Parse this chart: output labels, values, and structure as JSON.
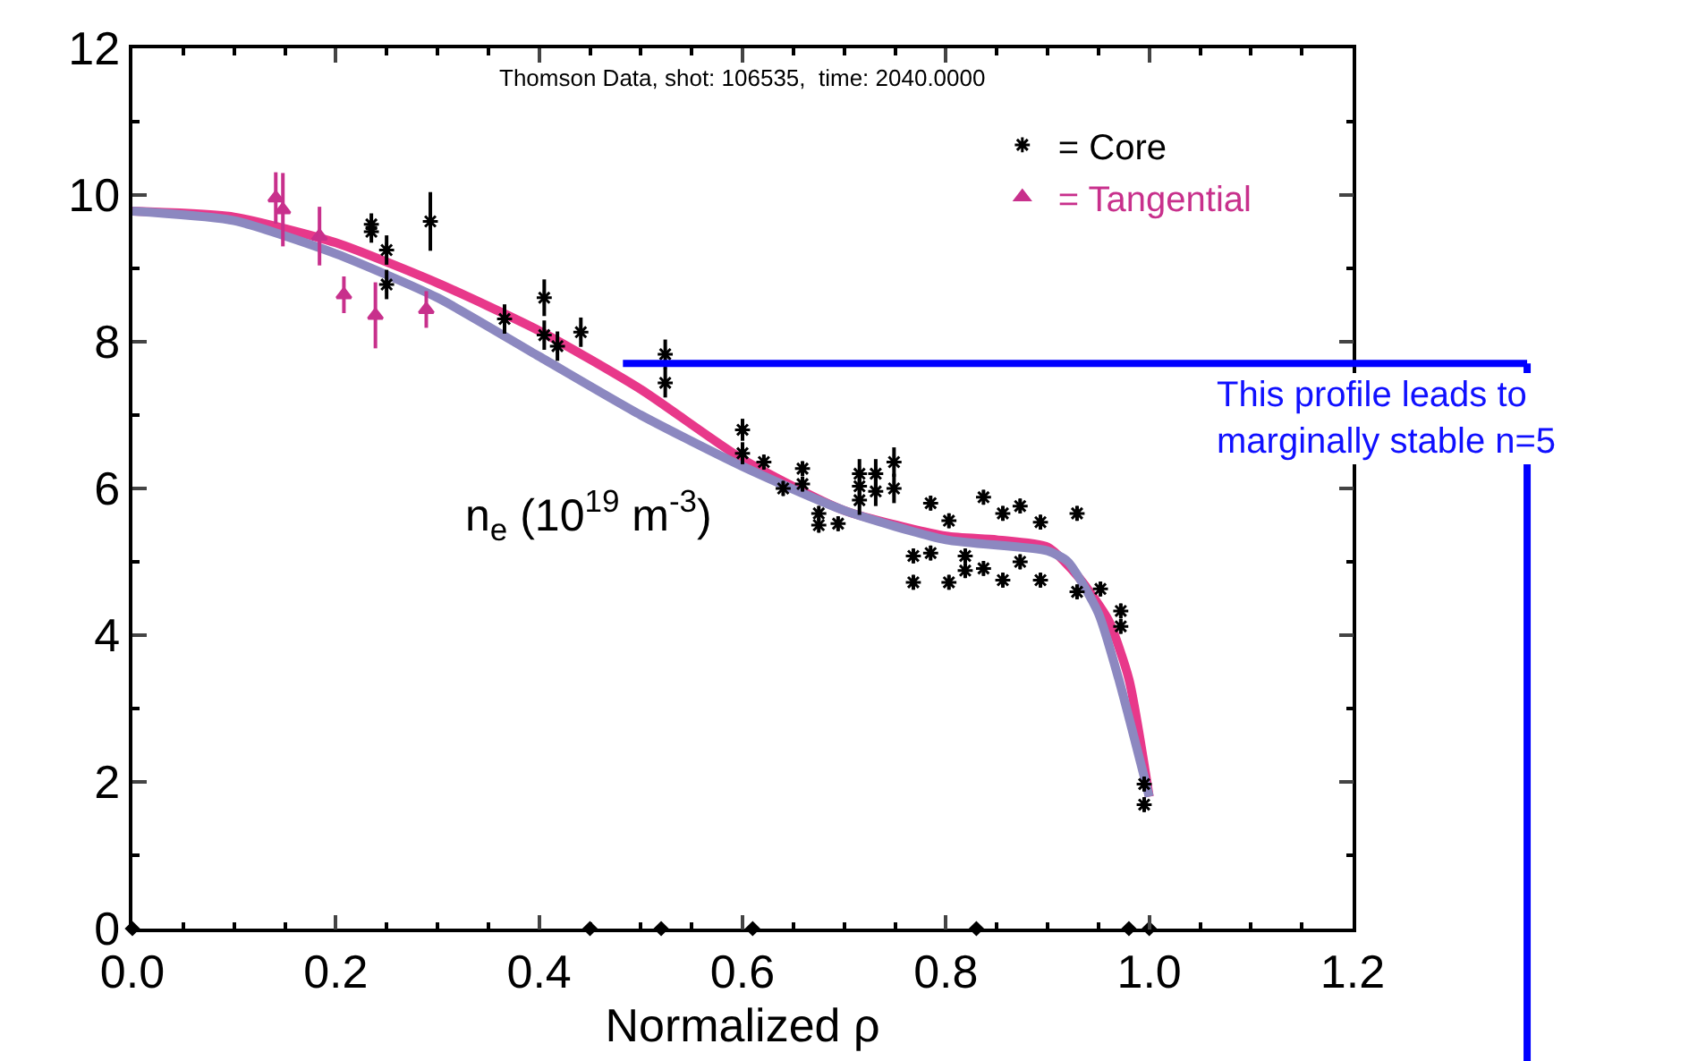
{
  "chart_data": {
    "type": "scatter",
    "title": "Thomson Data, shot: 106535,  time: 2040.0000",
    "xlabel": "Normalized ρ",
    "ylabel": "n$_{e}$ (10$^{19}$ m$^{-3}$)",
    "xlim": [
      0,
      1.2
    ],
    "xticks": [
      {
        "value": 0,
        "label": "0.0"
      },
      {
        "value": 0.2,
        "label": "0.2"
      },
      {
        "value": 0.4,
        "label": "0.4"
      },
      {
        "value": 0.6,
        "label": "0.6"
      },
      {
        "value": 0.8,
        "label": "0.8"
      },
      {
        "value": 1.0,
        "label": "1.0"
      },
      {
        "value": 1.2,
        "label": "1.2"
      }
    ],
    "ylim": [
      0,
      12
    ],
    "yticks": [
      0,
      2,
      4,
      6,
      8,
      10,
      12
    ],
    "legend": "top right",
    "annotations": [
      "This profile leads to marginally stable n=5"
    ],
    "series": [
      {
        "name": "= Core",
        "marker": "cross",
        "color": "#000000",
        "x": [
          0.235,
          0.235,
          0.25,
          0.25,
          0.293,
          0.366,
          0.405,
          0.405,
          0.418,
          0.441,
          0.524,
          0.524,
          0.6,
          0.6,
          0.621,
          0.64,
          0.659,
          0.659,
          0.675,
          0.675,
          0.694,
          0.715,
          0.715,
          0.715,
          0.731,
          0.731,
          0.749,
          0.749,
          0.768,
          0.768,
          0.785,
          0.785,
          0.803,
          0.803,
          0.819,
          0.819,
          0.837,
          0.837,
          0.856,
          0.856,
          0.873,
          0.873,
          0.893,
          0.893,
          0.929,
          0.929,
          0.952,
          0.972,
          0.972,
          0.995,
          0.995
        ],
        "values": [
          9.6,
          9.5,
          9.25,
          8.78,
          9.64,
          8.31,
          8.6,
          8.09,
          7.94,
          8.13,
          7.83,
          7.44,
          6.8,
          6.48,
          6.36,
          6.0,
          6.27,
          6.06,
          5.66,
          5.5,
          5.52,
          6.2,
          6.03,
          5.84,
          6.2,
          5.96,
          6.36,
          6.0,
          5.08,
          4.72,
          5.8,
          5.12,
          5.56,
          4.72,
          5.08,
          4.88,
          5.88,
          4.91,
          5.66,
          4.75,
          5.76,
          5.0,
          5.54,
          4.75,
          5.66,
          4.59,
          4.63,
          4.33,
          4.12,
          1.97,
          1.69
        ],
        "errors": [
          0.15,
          0.15,
          0.2,
          0.2,
          0.4,
          0.2,
          0.25,
          0.2,
          0.2,
          0.2,
          0.2,
          0.2,
          0.15,
          0.15,
          0.1,
          0.1,
          0.1,
          0.1,
          0.1,
          0.1,
          0.1,
          0.2,
          0.2,
          0.2,
          0.2,
          0.2,
          0.2,
          0.2,
          0.1,
          0.1,
          0.1,
          0.1,
          0.1,
          0.1,
          0.1,
          0.1,
          0.1,
          0.1,
          0.1,
          0.1,
          0.1,
          0.1,
          0.1,
          0.1,
          0.1,
          0.1,
          0.1,
          0.1,
          0.1,
          0.1,
          0.1
        ]
      },
      {
        "name": "= Tangential",
        "marker": "triangle",
        "color": "#c8308c",
        "x": [
          0.141,
          0.148,
          0.184,
          0.208,
          0.239,
          0.289
        ],
        "values": [
          9.96,
          9.8,
          9.44,
          8.64,
          8.36,
          8.44
        ],
        "errors": [
          0.35,
          0.5,
          0.4,
          0.25,
          0.45,
          0.25
        ]
      },
      {
        "type": "line",
        "color": "#e8388a",
        "x": [
          0,
          0.1,
          0.2,
          0.3,
          0.4,
          0.5,
          0.6,
          0.7,
          0.8,
          0.85,
          0.9,
          0.93,
          0.96,
          0.98,
          1.0
        ],
        "values": [
          9.78,
          9.7,
          9.35,
          8.8,
          8.15,
          7.35,
          6.4,
          5.7,
          5.35,
          5.3,
          5.2,
          4.8,
          4.2,
          3.4,
          1.8
        ]
      },
      {
        "type": "line",
        "color": "#8c88c0",
        "x": [
          0,
          0.1,
          0.2,
          0.3,
          0.4,
          0.5,
          0.6,
          0.7,
          0.8,
          0.9,
          0.92,
          0.95,
          0.97,
          1.0
        ],
        "values": [
          9.78,
          9.65,
          9.2,
          8.6,
          7.8,
          7.0,
          6.3,
          5.7,
          5.3,
          5.15,
          5.0,
          4.3,
          3.4,
          1.8
        ]
      },
      {
        "marker": "diamond",
        "color": "#000000",
        "x": [
          0,
          0.45,
          0.52,
          0.61,
          0.83,
          0.98,
          1.0
        ],
        "values": [
          0,
          0,
          0,
          0,
          0,
          0,
          0
        ]
      }
    ]
  }
}
